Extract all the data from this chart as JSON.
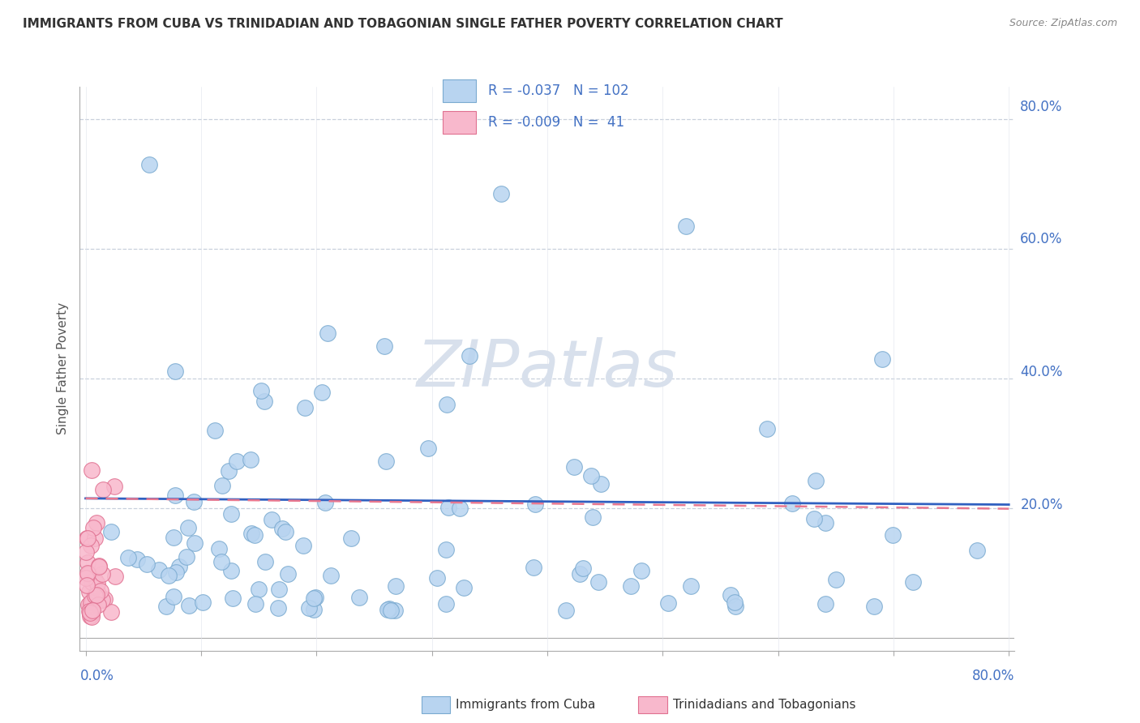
{
  "title": "IMMIGRANTS FROM CUBA VS TRINIDADIAN AND TOBAGONIAN SINGLE FATHER POVERTY CORRELATION CHART",
  "source": "Source: ZipAtlas.com",
  "ylabel": "Single Father Poverty",
  "xlim": [
    0.0,
    0.8
  ],
  "ylim": [
    -0.02,
    0.85
  ],
  "legend_cuba_r": "-0.037",
  "legend_cuba_n": "102",
  "legend_tt_r": "-0.009",
  "legend_tt_n": " 41",
  "cuba_color": "#b8d4f0",
  "cuba_edge_color": "#7aaad0",
  "tt_color": "#f8b8cc",
  "tt_edge_color": "#e07090",
  "cuba_line_color": "#3060c0",
  "tt_line_color": "#e87890",
  "grid_color": "#c8d0dc",
  "watermark_color": "#d8e0ec",
  "right_label_color": "#4472c4",
  "title_color": "#333333",
  "source_color": "#888888",
  "ylabel_color": "#555555"
}
